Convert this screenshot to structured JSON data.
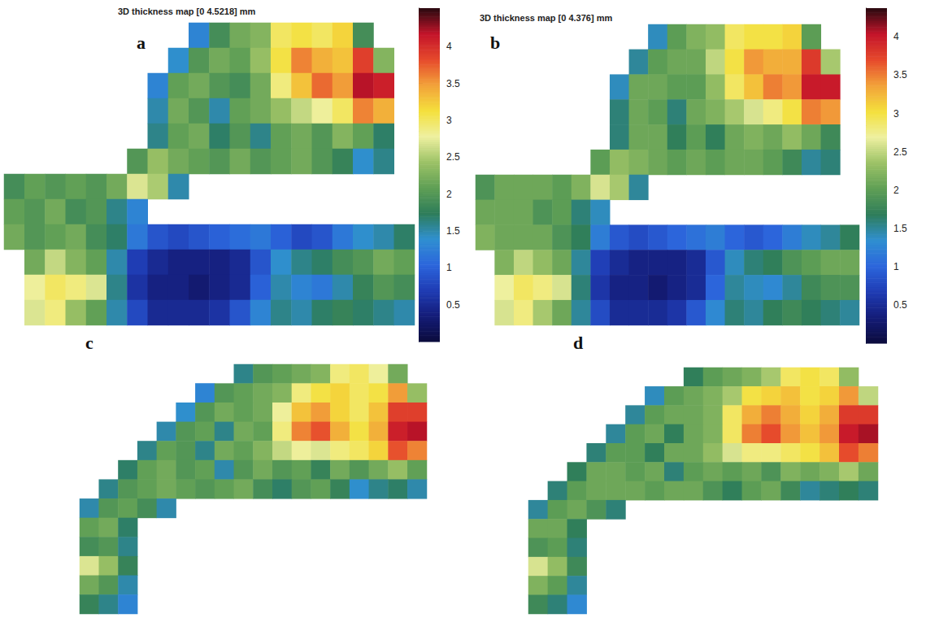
{
  "chart_data": [
    {
      "type": "heatmap",
      "panel": "a",
      "title": "3D thickness map [0 4.5218] mm",
      "tick_labels": false,
      "range": [
        0,
        4.5218
      ],
      "colorbar": {
        "range": [
          0,
          4.5218
        ],
        "ticks": [
          0.5,
          1,
          1.5,
          2,
          2.5,
          3,
          3.5,
          4
        ]
      },
      "colormap": [
        "#0b0b3c",
        "#141c78",
        "#1f3cb4",
        "#2c66dc",
        "#2f8fd0",
        "#2e7d5a",
        "#5f9f55",
        "#9cc266",
        "#eef0a0",
        "#f4e03c",
        "#f2a23a",
        "#e64a2c",
        "#c4142a",
        "#2a0a10"
      ],
      "cells": [
        [
          null,
          null,
          null,
          null,
          null,
          null,
          null,
          null,
          null,
          1.3,
          1.9,
          2.2,
          2.3,
          3.0,
          3.1,
          3.0,
          3.2,
          1.9,
          null,
          null
        ],
        [
          null,
          null,
          null,
          null,
          null,
          null,
          null,
          null,
          1.4,
          2.0,
          2.2,
          2.1,
          2.4,
          3.1,
          3.6,
          3.4,
          3.3,
          3.9,
          2.3,
          null
        ],
        [
          null,
          null,
          null,
          null,
          null,
          null,
          null,
          1.3,
          2.1,
          2.2,
          2.0,
          1.9,
          2.2,
          2.9,
          3.3,
          3.7,
          3.5,
          4.2,
          4.1,
          null
        ],
        [
          null,
          null,
          null,
          null,
          null,
          null,
          null,
          1.5,
          2.2,
          2.0,
          1.5,
          2.1,
          2.2,
          2.4,
          2.6,
          2.8,
          3.0,
          3.6,
          3.4,
          null
        ],
        [
          null,
          null,
          null,
          null,
          null,
          null,
          null,
          1.6,
          2.1,
          2.2,
          1.7,
          2.0,
          1.6,
          2.1,
          2.2,
          2.0,
          2.3,
          2.1,
          1.7,
          null
        ],
        [
          null,
          null,
          null,
          null,
          null,
          null,
          2.0,
          2.4,
          2.2,
          2.1,
          2.0,
          2.2,
          2.0,
          2.1,
          2.2,
          2.0,
          1.8,
          1.4,
          1.6,
          null
        ],
        [
          1.9,
          2.1,
          2.0,
          2.1,
          2.0,
          2.2,
          2.7,
          2.5,
          1.5,
          null,
          null,
          null,
          null,
          null,
          null,
          null,
          null,
          null,
          null,
          null
        ],
        [
          2.1,
          2.0,
          2.2,
          1.9,
          2.0,
          1.6,
          1.3,
          null,
          null,
          null,
          null,
          null,
          null,
          null,
          null,
          null,
          null,
          null,
          null,
          null
        ],
        [
          2.2,
          2.0,
          2.1,
          2.2,
          1.9,
          1.7,
          1.2,
          0.9,
          0.8,
          0.9,
          1.0,
          1.1,
          1.2,
          1.0,
          0.8,
          0.9,
          1.2,
          1.4,
          1.5,
          1.7
        ],
        [
          null,
          2.2,
          2.6,
          2.3,
          2.1,
          1.5,
          0.7,
          0.5,
          0.4,
          0.4,
          0.4,
          0.5,
          0.9,
          1.4,
          1.6,
          1.7,
          1.9,
          2.0,
          2.2,
          2.1
        ],
        [
          null,
          2.8,
          3.0,
          2.9,
          2.7,
          1.6,
          0.6,
          0.4,
          0.4,
          0.3,
          0.4,
          0.5,
          1.0,
          1.5,
          1.3,
          1.2,
          1.5,
          1.8,
          2.0,
          1.9
        ],
        [
          null,
          2.7,
          2.9,
          2.4,
          2.1,
          1.5,
          0.8,
          0.5,
          0.5,
          0.5,
          0.6,
          0.9,
          1.3,
          1.6,
          1.5,
          1.7,
          1.8,
          1.7,
          1.6,
          1.5
        ]
      ]
    },
    {
      "type": "heatmap",
      "panel": "b",
      "title": "3D thickness map [0 4.376] mm",
      "tick_labels": false,
      "range": [
        0,
        4.376
      ],
      "colorbar": {
        "range": [
          0,
          4.376
        ],
        "ticks": [
          0.5,
          1,
          1.5,
          2,
          2.5,
          3,
          3.5,
          4
        ]
      },
      "colormap": [
        "#0b0b3c",
        "#141c78",
        "#1f3cb4",
        "#2c66dc",
        "#2f8fd0",
        "#2e7d5a",
        "#5f9f55",
        "#9cc266",
        "#eef0a0",
        "#f4e03c",
        "#f2a23a",
        "#e64a2c",
        "#c4142a",
        "#2a0a10"
      ],
      "cells": [
        [
          null,
          null,
          null,
          null,
          null,
          null,
          null,
          null,
          null,
          1.4,
          2.0,
          2.2,
          2.3,
          2.9,
          3.0,
          3.0,
          3.1,
          2.0,
          null,
          null
        ],
        [
          null,
          null,
          null,
          null,
          null,
          null,
          null,
          null,
          1.5,
          2.0,
          2.1,
          2.1,
          2.5,
          3.0,
          3.4,
          3.3,
          3.3,
          3.8,
          2.4,
          null
        ],
        [
          null,
          null,
          null,
          null,
          null,
          null,
          null,
          1.4,
          2.1,
          2.1,
          2.0,
          2.0,
          2.3,
          2.9,
          3.2,
          3.5,
          3.4,
          4.0,
          4.0,
          null
        ],
        [
          null,
          null,
          null,
          null,
          null,
          null,
          null,
          1.6,
          2.1,
          2.0,
          1.6,
          2.1,
          2.2,
          2.4,
          2.6,
          2.8,
          3.0,
          3.5,
          3.4,
          null
        ],
        [
          null,
          null,
          null,
          null,
          null,
          null,
          null,
          1.6,
          2.1,
          2.1,
          1.7,
          2.0,
          1.7,
          2.1,
          2.2,
          2.1,
          2.3,
          2.1,
          1.8,
          null
        ],
        [
          null,
          null,
          null,
          null,
          null,
          null,
          2.0,
          2.3,
          2.2,
          2.1,
          2.0,
          2.1,
          2.0,
          2.1,
          2.1,
          2.0,
          1.8,
          1.5,
          1.6,
          null
        ],
        [
          1.9,
          2.1,
          2.1,
          2.1,
          2.0,
          2.2,
          2.6,
          2.4,
          1.5,
          null,
          null,
          null,
          null,
          null,
          null,
          null,
          null,
          null,
          null,
          null
        ],
        [
          2.1,
          2.1,
          2.1,
          1.9,
          2.0,
          1.6,
          1.4,
          null,
          null,
          null,
          null,
          null,
          null,
          null,
          null,
          null,
          null,
          null,
          null,
          null
        ],
        [
          2.2,
          2.1,
          2.1,
          2.1,
          1.9,
          1.7,
          1.2,
          0.9,
          0.8,
          0.9,
          1.0,
          1.1,
          1.2,
          1.0,
          0.9,
          1.0,
          1.2,
          1.4,
          1.5,
          1.7
        ],
        [
          null,
          2.2,
          2.5,
          2.3,
          2.1,
          1.5,
          0.7,
          0.5,
          0.4,
          0.4,
          0.4,
          0.5,
          0.9,
          1.4,
          1.6,
          1.7,
          1.9,
          2.0,
          2.1,
          2.1
        ],
        [
          null,
          2.7,
          2.9,
          2.8,
          2.6,
          1.6,
          0.6,
          0.4,
          0.4,
          0.3,
          0.4,
          0.5,
          1.0,
          1.5,
          1.4,
          1.3,
          1.5,
          1.8,
          1.9,
          1.9
        ],
        [
          null,
          2.6,
          2.8,
          2.4,
          2.1,
          1.5,
          0.8,
          0.5,
          0.5,
          0.5,
          0.6,
          0.9,
          1.3,
          1.6,
          1.5,
          1.7,
          1.8,
          1.7,
          1.6,
          1.5
        ]
      ]
    },
    {
      "type": "heatmap",
      "panel": "c",
      "tick_labels": false,
      "range": [
        0,
        4.5218
      ],
      "colormap": [
        "#0b0b3c",
        "#141c78",
        "#1f3cb4",
        "#2c66dc",
        "#2f8fd0",
        "#2e7d5a",
        "#5f9f55",
        "#9cc266",
        "#eef0a0",
        "#f4e03c",
        "#f2a23a",
        "#e64a2c",
        "#c4142a",
        "#2a0a10"
      ],
      "cells": [
        [
          null,
          null,
          null,
          null,
          null,
          null,
          null,
          null,
          1.6,
          2.0,
          2.1,
          2.2,
          2.3,
          2.9,
          3.0,
          2.8,
          2.2,
          null
        ],
        [
          null,
          null,
          null,
          null,
          null,
          null,
          1.3,
          2.0,
          2.1,
          2.2,
          2.3,
          2.9,
          3.1,
          3.2,
          3.0,
          3.1,
          3.5,
          2.4
        ],
        [
          null,
          null,
          null,
          null,
          null,
          1.4,
          2.0,
          2.2,
          2.1,
          2.2,
          2.8,
          3.3,
          3.5,
          3.2,
          3.0,
          3.3,
          3.9,
          3.9
        ],
        [
          null,
          null,
          null,
          null,
          1.5,
          2.0,
          2.1,
          1.6,
          2.2,
          2.1,
          2.9,
          3.6,
          3.8,
          3.4,
          3.1,
          3.4,
          4.1,
          4.2
        ],
        [
          null,
          null,
          null,
          1.6,
          2.1,
          2.0,
          1.6,
          2.2,
          2.1,
          2.3,
          2.6,
          2.8,
          2.7,
          2.9,
          3.0,
          3.2,
          3.8,
          3.6
        ],
        [
          null,
          null,
          1.7,
          2.1,
          2.2,
          2.0,
          2.1,
          1.5,
          2.0,
          2.2,
          2.0,
          2.1,
          1.8,
          2.2,
          2.0,
          2.2,
          2.4,
          2.1
        ],
        [
          null,
          1.6,
          2.0,
          2.1,
          2.2,
          2.1,
          2.0,
          2.1,
          2.2,
          1.9,
          1.7,
          2.0,
          2.1,
          1.8,
          1.4,
          1.6,
          1.7,
          1.5
        ],
        [
          1.5,
          2.0,
          2.1,
          1.9,
          1.5,
          null,
          null,
          null,
          null,
          null,
          null,
          null,
          null,
          null,
          null,
          null,
          null,
          null
        ],
        [
          2.1,
          2.2,
          1.7,
          null,
          null,
          null,
          null,
          null,
          null,
          null,
          null,
          null,
          null,
          null,
          null,
          null,
          null,
          null
        ],
        [
          1.9,
          2.0,
          1.6,
          null,
          null,
          null,
          null,
          null,
          null,
          null,
          null,
          null,
          null,
          null,
          null,
          null,
          null,
          null
        ],
        [
          2.7,
          2.4,
          1.8,
          null,
          null,
          null,
          null,
          null,
          null,
          null,
          null,
          null,
          null,
          null,
          null,
          null,
          null,
          null
        ],
        [
          2.2,
          2.0,
          1.5,
          null,
          null,
          null,
          null,
          null,
          null,
          null,
          null,
          null,
          null,
          null,
          null,
          null,
          null,
          null
        ],
        [
          1.8,
          1.6,
          1.3,
          null,
          null,
          null,
          null,
          null,
          null,
          null,
          null,
          null,
          null,
          null,
          null,
          null,
          null,
          null
        ]
      ]
    },
    {
      "type": "heatmap",
      "panel": "d",
      "tick_labels": false,
      "range": [
        0,
        4.376
      ],
      "colormap": [
        "#0b0b3c",
        "#141c78",
        "#1f3cb4",
        "#2c66dc",
        "#2f8fd0",
        "#2e7d5a",
        "#5f9f55",
        "#9cc266",
        "#eef0a0",
        "#f4e03c",
        "#f2a23a",
        "#e64a2c",
        "#c4142a",
        "#2a0a10"
      ],
      "cells": [
        [
          null,
          null,
          null,
          null,
          null,
          null,
          null,
          null,
          1.7,
          2.0,
          2.1,
          2.2,
          2.4,
          2.9,
          3.0,
          2.9,
          2.3,
          null
        ],
        [
          null,
          null,
          null,
          null,
          null,
          null,
          1.4,
          2.0,
          2.1,
          2.2,
          2.4,
          3.0,
          3.1,
          3.2,
          3.0,
          3.1,
          3.4,
          2.5
        ],
        [
          null,
          null,
          null,
          null,
          null,
          1.5,
          2.0,
          2.1,
          2.1,
          2.2,
          2.9,
          3.3,
          3.5,
          3.3,
          3.1,
          3.3,
          3.8,
          3.8
        ],
        [
          null,
          null,
          null,
          null,
          1.5,
          2.0,
          2.1,
          1.7,
          2.1,
          2.2,
          2.9,
          3.5,
          3.7,
          3.4,
          3.2,
          3.4,
          4.0,
          4.1
        ],
        [
          null,
          null,
          null,
          1.6,
          2.0,
          2.0,
          1.7,
          2.1,
          2.1,
          2.3,
          2.6,
          2.8,
          2.8,
          2.9,
          3.0,
          3.2,
          3.7,
          3.5
        ],
        [
          null,
          null,
          1.7,
          2.1,
          2.1,
          2.0,
          2.1,
          1.6,
          2.0,
          2.1,
          2.0,
          2.1,
          1.9,
          2.2,
          2.1,
          2.2,
          2.4,
          2.1
        ],
        [
          null,
          1.6,
          2.0,
          2.1,
          2.1,
          2.1,
          2.0,
          2.1,
          2.1,
          1.9,
          1.7,
          2.0,
          2.1,
          1.8,
          1.5,
          1.6,
          1.7,
          1.6
        ],
        [
          1.5,
          2.0,
          2.1,
          1.9,
          1.6,
          null,
          null,
          null,
          null,
          null,
          null,
          null,
          null,
          null,
          null,
          null,
          null,
          null
        ],
        [
          2.1,
          2.1,
          1.7,
          null,
          null,
          null,
          null,
          null,
          null,
          null,
          null,
          null,
          null,
          null,
          null,
          null,
          null,
          null
        ],
        [
          1.9,
          2.0,
          1.6,
          null,
          null,
          null,
          null,
          null,
          null,
          null,
          null,
          null,
          null,
          null,
          null,
          null,
          null,
          null
        ],
        [
          2.6,
          2.3,
          1.8,
          null,
          null,
          null,
          null,
          null,
          null,
          null,
          null,
          null,
          null,
          null,
          null,
          null,
          null,
          null
        ],
        [
          2.2,
          2.0,
          1.5,
          null,
          null,
          null,
          null,
          null,
          null,
          null,
          null,
          null,
          null,
          null,
          null,
          null,
          null,
          null
        ],
        [
          1.8,
          1.6,
          1.3,
          null,
          null,
          null,
          null,
          null,
          null,
          null,
          null,
          null,
          null,
          null,
          null,
          null,
          null,
          null
        ]
      ]
    }
  ]
}
